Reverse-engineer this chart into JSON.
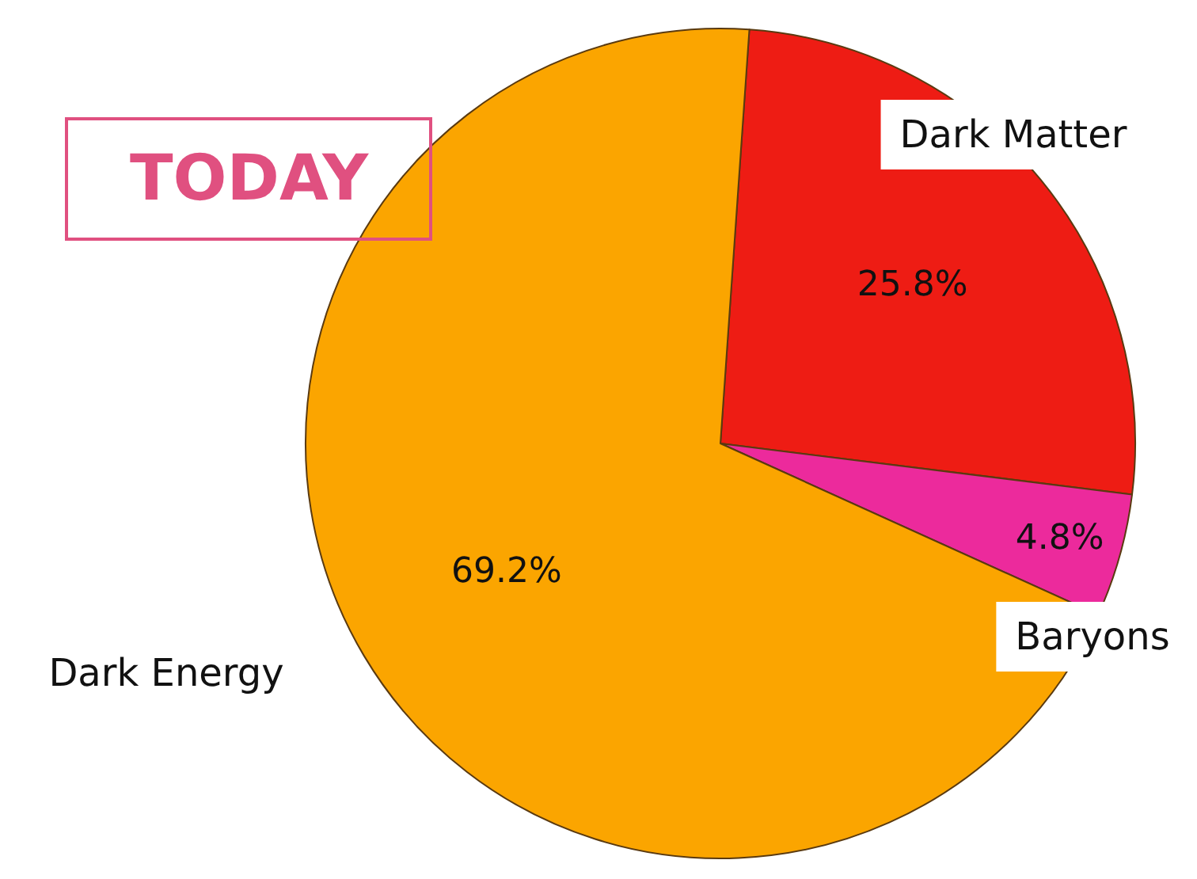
{
  "chart_data": {
    "type": "pie",
    "title": "TODAY",
    "categories": [
      "Dark Matter",
      "Baryons",
      "Dark Energy"
    ],
    "values": [
      25.8,
      4.8,
      69.2
    ],
    "colors": [
      "#ee1c14",
      "#ec2a9c",
      "#fba500"
    ],
    "value_labels": [
      "25.8%",
      "4.8%",
      "69.2%"
    ]
  }
}
